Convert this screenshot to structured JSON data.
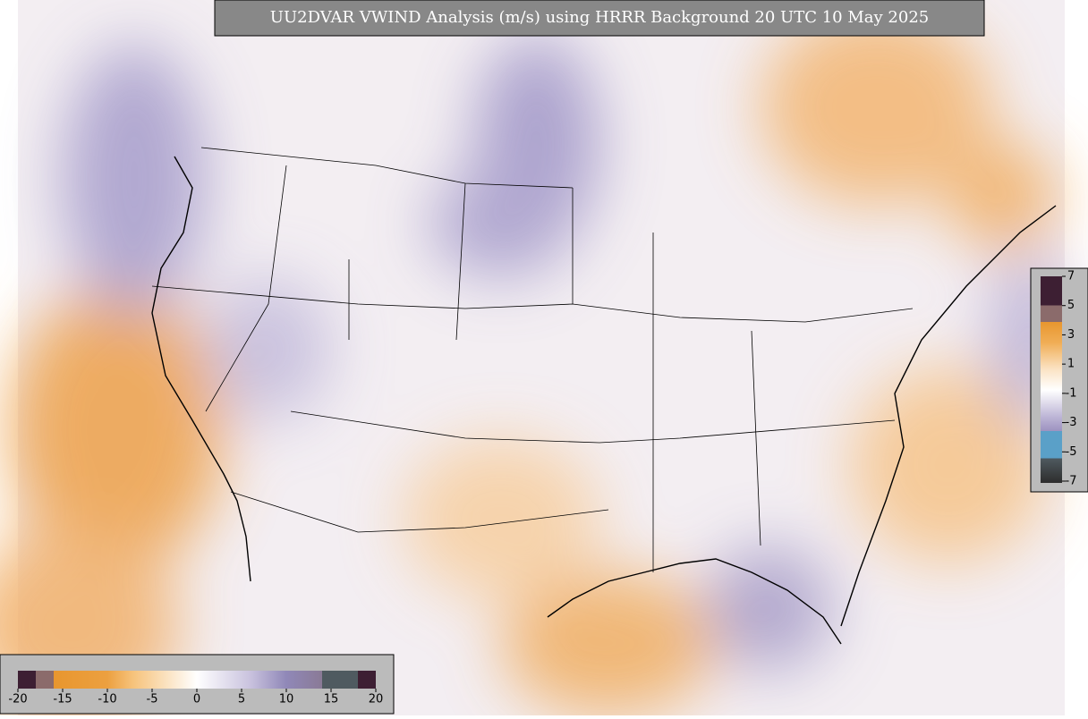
{
  "title": "UU2DVAR VWIND Analysis (m/s) using HRRR Background 20 UTC 10 May 2025",
  "colorbar_bottom": {
    "ticks": [
      -20,
      -15,
      -10,
      -5,
      0,
      5,
      10,
      15,
      20
    ]
  },
  "colorbar_right": {
    "ticks": [
      7,
      5,
      3,
      1,
      -1,
      -3,
      -5,
      -7
    ]
  }
}
